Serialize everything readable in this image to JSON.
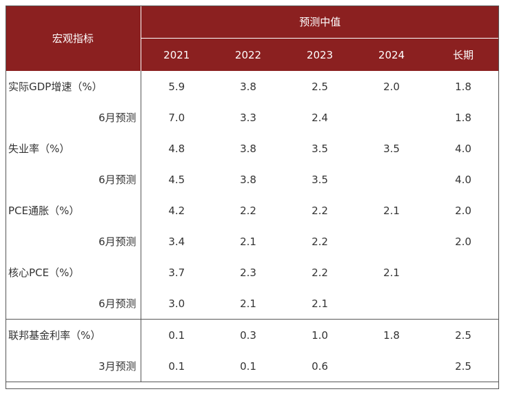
{
  "header": {
    "indicator_label": "宏观指标",
    "group_label": "预测中值",
    "years": [
      "2021",
      "2022",
      "2023",
      "2024",
      "长期"
    ]
  },
  "rows": [
    {
      "label": "实际GDP增速（%）",
      "sub": false,
      "values": [
        "5.9",
        "3.8",
        "2.5",
        "2.0",
        "1.8"
      ]
    },
    {
      "label": "6月预测",
      "sub": true,
      "values": [
        "7.0",
        "3.3",
        "2.4",
        "",
        "1.8"
      ]
    },
    {
      "label": "失业率（%）",
      "sub": false,
      "values": [
        "4.8",
        "3.8",
        "3.5",
        "3.5",
        "4.0"
      ]
    },
    {
      "label": "6月预测",
      "sub": true,
      "values": [
        "4.5",
        "3.8",
        "3.5",
        "",
        "4.0"
      ]
    },
    {
      "label": "PCE通胀（%）",
      "sub": false,
      "values": [
        "4.2",
        "2.2",
        "2.2",
        "2.1",
        "2.0"
      ]
    },
    {
      "label": "6月预测",
      "sub": true,
      "values": [
        "3.4",
        "2.1",
        "2.2",
        "",
        "2.0"
      ]
    },
    {
      "label": "核心PCE（%）",
      "sub": false,
      "values": [
        "3.7",
        "2.3",
        "2.2",
        "2.1",
        ""
      ]
    },
    {
      "label": "6月预测",
      "sub": true,
      "values": [
        "3.0",
        "2.1",
        "2.1",
        "",
        ""
      ]
    },
    {
      "label": "联邦基金利率（%）",
      "sub": false,
      "values": [
        "0.1",
        "0.3",
        "1.0",
        "1.8",
        "2.5"
      ]
    },
    {
      "label": "3月预测",
      "sub": true,
      "values": [
        "0.1",
        "0.1",
        "0.6",
        "",
        "2.5"
      ]
    }
  ],
  "colors": {
    "header_bg": "#8b2020",
    "header_text": "#ffffff",
    "text": "#333333",
    "rule": "#555555"
  }
}
